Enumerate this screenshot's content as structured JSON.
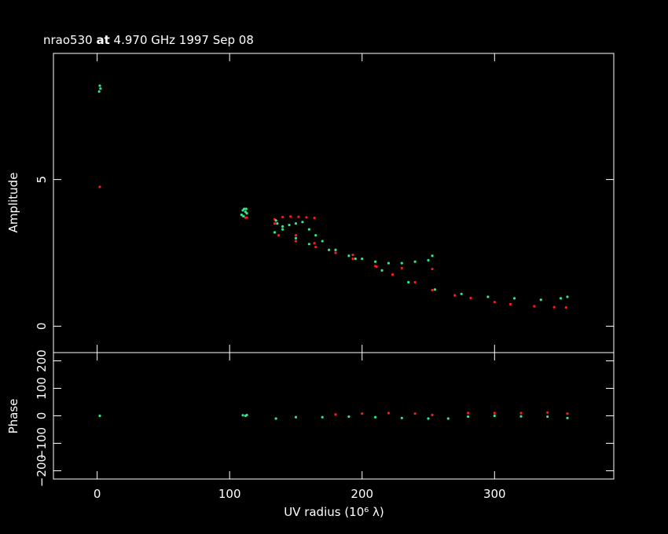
{
  "chart_data": [
    {
      "type": "scatter",
      "title_parts": [
        "nrao530",
        "at",
        "4.970 GHz 1997 Sep 08"
      ],
      "y_label": "Amplitude",
      "xlim": [
        -33,
        390
      ],
      "xticks": [
        0,
        100,
        200,
        300
      ],
      "ylim": [
        -0.9,
        9.3
      ],
      "yticks": [
        0,
        5
      ],
      "series": [
        {
          "color": "#ff1a1a",
          "x": [
            2,
            110,
            112,
            113,
            134,
            140,
            146,
            152,
            158,
            164,
            137,
            150,
            165,
            180,
            193,
            211,
            230,
            253,
            134,
            150,
            164,
            180,
            193,
            210,
            223,
            240,
            253,
            270,
            282,
            300,
            312,
            330,
            345,
            354
          ],
          "values": [
            4.75,
            3.75,
            3.7,
            3.7,
            3.64,
            3.72,
            3.74,
            3.73,
            3.71,
            3.69,
            3.1,
            2.9,
            2.7,
            2.5,
            2.3,
            2.03,
            1.98,
            1.95,
            3.5,
            3.1,
            2.83,
            2.6,
            2.43,
            2.05,
            1.76,
            1.5,
            1.23,
            1.05,
            0.96,
            0.82,
            0.75,
            0.68,
            0.65,
            0.64
          ]
        },
        {
          "color": "#2ee88a",
          "x": [
            1.5,
            2,
            2.5,
            109,
            110,
            111,
            112,
            113,
            110.5,
            112.5,
            134,
            136,
            140,
            145,
            150,
            155,
            160,
            165,
            170,
            180,
            190,
            200,
            210,
            220,
            230,
            240,
            250,
            253,
            135,
            140,
            150,
            160,
            175,
            195,
            215,
            235,
            255,
            275,
            295,
            315,
            335,
            350,
            355
          ],
          "values": [
            8.0,
            8.2,
            8.1,
            3.8,
            3.95,
            4.0,
            3.9,
            3.85,
            3.75,
            4.0,
            3.2,
            3.5,
            3.4,
            3.45,
            3.5,
            3.55,
            3.3,
            3.1,
            2.9,
            2.6,
            2.4,
            2.3,
            2.2,
            2.15,
            2.15,
            2.2,
            2.25,
            2.4,
            3.6,
            3.3,
            3.0,
            2.8,
            2.6,
            2.3,
            1.9,
            1.5,
            1.25,
            1.1,
            1.0,
            0.95,
            0.9,
            0.95,
            1.0
          ]
        }
      ]
    },
    {
      "type": "scatter",
      "y_label": "Phase",
      "x_label": "UV radius  (10⁶ λ)",
      "xlim": [
        -33,
        390
      ],
      "xticks": [
        0,
        100,
        200,
        300
      ],
      "ylim": [
        -230,
        230
      ],
      "yticks": [
        {
          "value": -200,
          "label": "−200"
        },
        {
          "value": -100,
          "label": "−100"
        },
        0,
        100,
        200
      ],
      "series": [
        {
          "color": "#ff1a1a",
          "x": [
            180,
            200,
            220,
            240,
            253,
            280,
            300,
            320,
            340,
            355
          ],
          "values": [
            5,
            8,
            10,
            8,
            3,
            10,
            10,
            10,
            12,
            8
          ]
        },
        {
          "color": "#2ee88a",
          "x": [
            2,
            110,
            112,
            113,
            135,
            150,
            170,
            190,
            210,
            230,
            250,
            265,
            280,
            300,
            320,
            340,
            355
          ],
          "values": [
            0,
            2,
            0,
            3,
            -10,
            -5,
            -5,
            -3,
            -5,
            -8,
            -10,
            -10,
            -3,
            0,
            -2,
            -3,
            -8
          ]
        }
      ]
    }
  ]
}
